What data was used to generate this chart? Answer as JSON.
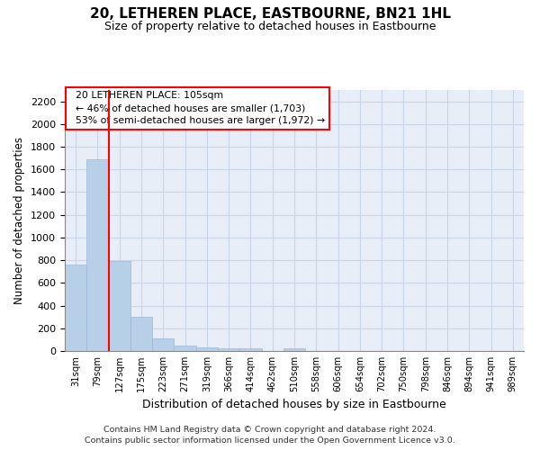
{
  "title": "20, LETHEREN PLACE, EASTBOURNE, BN21 1HL",
  "subtitle": "Size of property relative to detached houses in Eastbourne",
  "xlabel": "Distribution of detached houses by size in Eastbourne",
  "ylabel": "Number of detached properties",
  "categories": [
    "31sqm",
    "79sqm",
    "127sqm",
    "175sqm",
    "223sqm",
    "271sqm",
    "319sqm",
    "366sqm",
    "414sqm",
    "462sqm",
    "510sqm",
    "558sqm",
    "606sqm",
    "654sqm",
    "702sqm",
    "750sqm",
    "798sqm",
    "846sqm",
    "894sqm",
    "941sqm",
    "989sqm"
  ],
  "values": [
    760,
    1690,
    790,
    300,
    110,
    45,
    30,
    25,
    20,
    0,
    20,
    0,
    0,
    0,
    0,
    0,
    0,
    0,
    0,
    0,
    0
  ],
  "bar_color": "#b8cfe8",
  "bar_edge_color": "#9ab8d8",
  "grid_color": "#c8d4e8",
  "background_color": "#e8eef8",
  "vline_x": 1.5,
  "vline_color": "red",
  "annotation_text": "  20 LETHEREN PLACE: 105sqm\n  ← 46% of detached houses are smaller (1,703)\n  53% of semi-detached houses are larger (1,972) →",
  "annotation_box_color": "white",
  "annotation_box_edge": "red",
  "ylim": [
    0,
    2300
  ],
  "yticks": [
    0,
    200,
    400,
    600,
    800,
    1000,
    1200,
    1400,
    1600,
    1800,
    2000,
    2200
  ],
  "footer_line1": "Contains HM Land Registry data © Crown copyright and database right 2024.",
  "footer_line2": "Contains public sector information licensed under the Open Government Licence v3.0."
}
